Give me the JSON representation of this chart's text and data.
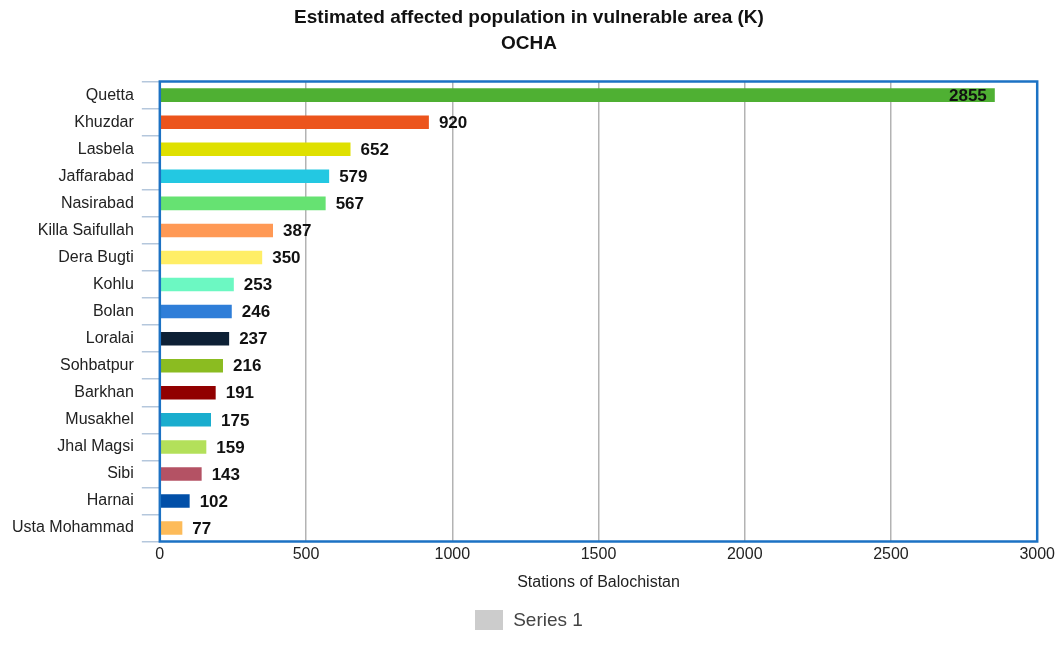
{
  "chart_data": {
    "type": "bar",
    "orientation": "horizontal",
    "title": "Estimated affected population in vulnerable area (K)",
    "subtitle": "OCHA",
    "xlabel": "Stations of Balochistan",
    "categories": [
      "Quetta",
      "Khuzdar",
      "Lasbela",
      "Jaffarabad",
      "Nasirabad",
      "Killa Saifullah",
      "Dera Bugti",
      "Kohlu",
      "Bolan",
      "Loralai",
      "Sohbatpur",
      "Barkhan",
      "Musakhel",
      "Jhal Magsi",
      "Sibi",
      "Harnai",
      "Usta Mohammad"
    ],
    "series": [
      {
        "name": "Series 1",
        "color": "#cccccc",
        "values": [
          2855,
          920,
          652,
          579,
          567,
          387,
          350,
          253,
          246,
          237,
          216,
          191,
          175,
          159,
          143,
          102,
          77
        ],
        "colors": [
          "#4fb033",
          "#ec541c",
          "#dfe000",
          "#23c8e2",
          "#66e272",
          "#ff9955",
          "#ffee66",
          "#6cf8c2",
          "#2f7ed8",
          "#0d2035",
          "#8bbc21",
          "#910000",
          "#1aadce",
          "#b3e05a",
          "#b45264",
          "#014fa8",
          "#fdbb59"
        ]
      }
    ],
    "xlim": [
      0,
      3000
    ],
    "xticks": [
      0,
      500,
      1000,
      1500,
      2000,
      2500,
      3000
    ],
    "grid": "x",
    "legend": "bottom",
    "data_labels": true
  }
}
